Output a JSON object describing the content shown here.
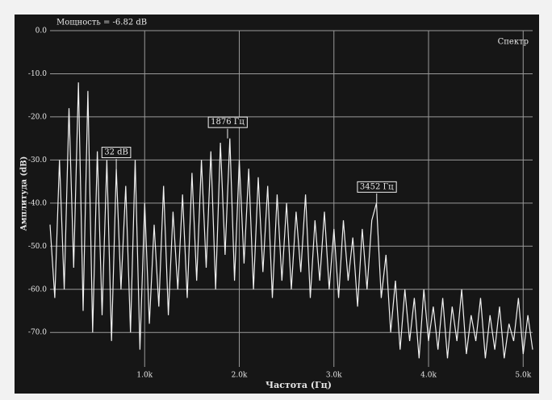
{
  "chart_data": {
    "type": "line",
    "title": "Мощность = -6.82 dB",
    "x_label": "Частота (Гц)",
    "y_label": "Амплитуда (dB)",
    "x": [
      0,
      50,
      100,
      150,
      200,
      250,
      300,
      350,
      400,
      450,
      500,
      550,
      600,
      650,
      700,
      750,
      800,
      850,
      900,
      950,
      1000,
      1050,
      1100,
      1150,
      1200,
      1250,
      1300,
      1350,
      1400,
      1450,
      1500,
      1550,
      1600,
      1650,
      1700,
      1750,
      1800,
      1850,
      1900,
      1950,
      2000,
      2050,
      2100,
      2150,
      2200,
      2250,
      2300,
      2350,
      2400,
      2450,
      2500,
      2550,
      2600,
      2650,
      2700,
      2750,
      2800,
      2850,
      2900,
      2950,
      3000,
      3050,
      3100,
      3150,
      3200,
      3250,
      3300,
      3350,
      3400,
      3450,
      3500,
      3550,
      3600,
      3650,
      3700,
      3750,
      3800,
      3850,
      3900,
      3950,
      4000,
      4050,
      4100,
      4150,
      4200,
      4250,
      4300,
      4350,
      4400,
      4450,
      4500,
      4550,
      4600,
      4650,
      4700,
      4750,
      4800,
      4850,
      4900,
      4950,
      5000,
      5050,
      5100
    ],
    "series": [
      {
        "name": "Спектр",
        "color": "#f0f0f0",
        "values": [
          -45,
          -62,
          -30,
          -60,
          -18,
          -55,
          -12,
          -65,
          -14,
          -70,
          -28,
          -66,
          -30,
          -72,
          -32,
          -60,
          -36,
          -70,
          -30,
          -74,
          -40,
          -68,
          -45,
          -64,
          -36,
          -66,
          -42,
          -60,
          -38,
          -62,
          -33,
          -58,
          -30,
          -55,
          -28,
          -60,
          -26,
          -52,
          -25,
          -58,
          -30,
          -54,
          -32,
          -60,
          -34,
          -56,
          -36,
          -62,
          -38,
          -58,
          -40,
          -60,
          -42,
          -56,
          -38,
          -62,
          -44,
          -58,
          -42,
          -60,
          -46,
          -62,
          -44,
          -58,
          -48,
          -64,
          -46,
          -60,
          -44,
          -40,
          -62,
          -52,
          -70,
          -58,
          -74,
          -60,
          -72,
          -62,
          -76,
          -60,
          -72,
          -64,
          -74,
          -62,
          -76,
          -64,
          -72,
          -60,
          -75,
          -66,
          -72,
          -62,
          -76,
          -66,
          -74,
          -64,
          -76,
          -68,
          -72,
          -62,
          -75,
          -66,
          -74
        ]
      }
    ],
    "annotations": [
      {
        "label": "32 dB",
        "x": 700,
        "y": -32
      },
      {
        "label": "1876 Гц",
        "x": 1876,
        "y": -25
      },
      {
        "label": "3452 Гц",
        "x": 3452,
        "y": -40
      }
    ],
    "xlim": [
      0,
      5100
    ],
    "ylim": [
      -78,
      0
    ],
    "xticks": [
      {
        "value": 1000,
        "label": "1.0k"
      },
      {
        "value": 2000,
        "label": "2.0k"
      },
      {
        "value": 3000,
        "label": "3.0k"
      },
      {
        "value": 4000,
        "label": "4.0k"
      },
      {
        "value": 5000,
        "label": "5.0k"
      }
    ],
    "yticks": [
      {
        "value": 0,
        "label": "0.0"
      },
      {
        "value": -10,
        "label": "-10.0"
      },
      {
        "value": -20,
        "label": "-20.0"
      },
      {
        "value": -30,
        "label": "-30.0"
      },
      {
        "value": -40,
        "label": "-40.0"
      },
      {
        "value": -50,
        "label": "-50.0"
      },
      {
        "value": -60,
        "label": "-60.0"
      },
      {
        "value": -70,
        "label": "-70.0"
      }
    ],
    "grid": true
  }
}
